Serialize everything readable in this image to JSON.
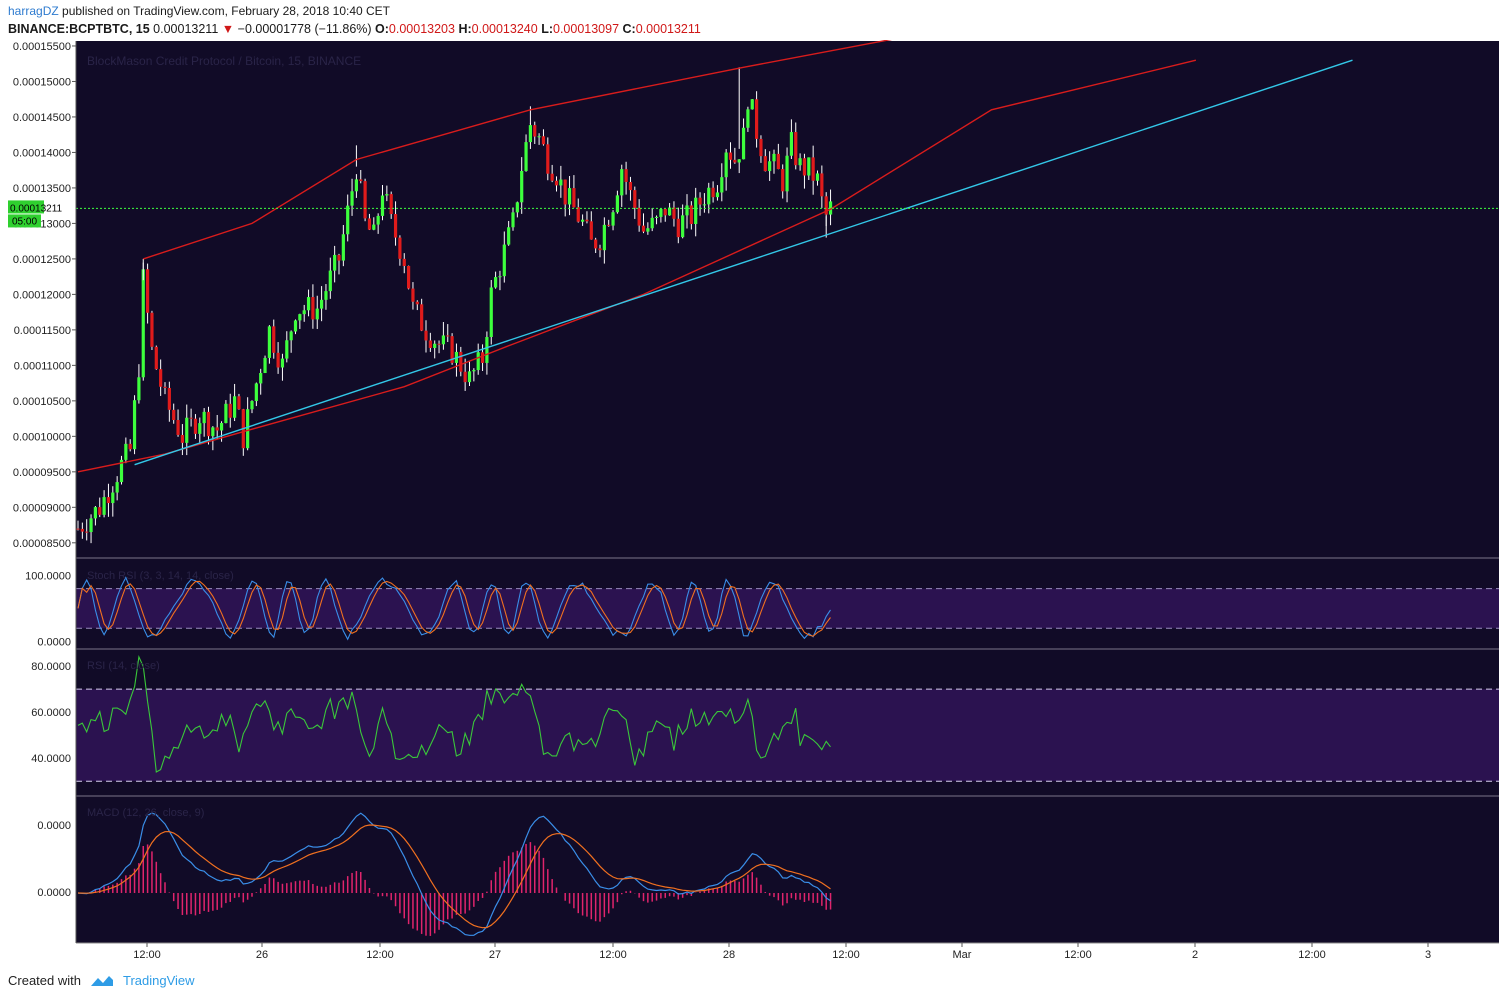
{
  "header": {
    "author": "harragDZ",
    "published": "published on TradingView.com, February 28, 2018 10:40 CET",
    "symbol": "BINANCE:BCPTBTC, 15",
    "last": "0.00013211",
    "arrow": "▼",
    "change": "−0.00001778 (−11.86%)",
    "o_label": "O:",
    "o_val": "0.00013203",
    "h_label": "H:",
    "h_val": "0.00013240",
    "l_label": "L:",
    "l_val": "0.00013097",
    "c_label": "C:",
    "c_val": "0.00013211"
  },
  "footer": {
    "created": "Created with",
    "brand": "TradingView"
  },
  "colors": {
    "pane_bg": "#110b27",
    "band_fill": "#2b1250",
    "up": "#3dff3d",
    "down": "#e01b1b",
    "channel": "#d81c1c",
    "trendline": "#33c8e8",
    "last_line": "#3dff3d",
    "stoch_k": "#3a8ee8",
    "stoch_d": "#f07020",
    "rsi": "#3ac83a",
    "macd": "#3a8ee8",
    "signal": "#f07020",
    "hist": "#e0246c"
  },
  "chart_data": {
    "type": "candlestick",
    "title": "BlockMason Credit Protocol / Bitcoin, 15, BINANCE",
    "price_axis_labels": [
      "0.00015500",
      "0.00015000",
      "0.00014500",
      "0.00014000",
      "0.00013500",
      "0.00013000",
      "0.00012500",
      "0.00012000",
      "0.00011500",
      "0.00011000",
      "0.00010500",
      "0.00010000",
      "0.00009500",
      "0.00009000",
      "0.00008500"
    ],
    "price_range": [
      8.3e-05,
      0.0001557
    ],
    "last_price_tag": "0.00013211",
    "countdown_tag": "05:00",
    "time_labels": [
      "12:00",
      "26",
      "12:00",
      "27",
      "12:00",
      "28",
      "12:00",
      "Mar",
      "12:00",
      "2",
      "12:00",
      "3"
    ],
    "price_path": [
      [
        0,
        8.7e-05
      ],
      [
        5,
        9e-05
      ],
      [
        10,
        9.6e-05
      ],
      [
        12,
        9.8e-05
      ],
      [
        14,
        0.00011
      ],
      [
        15,
        0.000122
      ],
      [
        17,
        0.000112
      ],
      [
        20,
        0.000105
      ],
      [
        24,
        0.0001
      ],
      [
        28,
        0.000103
      ],
      [
        32,
        0.000101
      ],
      [
        36,
        0.000105
      ],
      [
        38,
        0.0001
      ],
      [
        40,
        0.000105
      ],
      [
        44,
        0.000115
      ],
      [
        47,
        0.00011
      ],
      [
        50,
        0.000118
      ],
      [
        55,
        0.000118
      ],
      [
        60,
        0.000125
      ],
      [
        64,
        0.000138
      ],
      [
        66,
        0.00013
      ],
      [
        68,
        0.000128
      ],
      [
        70,
        0.000135
      ],
      [
        72,
        0.00013
      ],
      [
        75,
        0.000125
      ],
      [
        77,
        0.000118
      ],
      [
        80,
        0.000115
      ],
      [
        83,
        0.000113
      ],
      [
        86,
        0.000112
      ],
      [
        90,
        0.000108
      ],
      [
        93,
        0.000111
      ],
      [
        95,
        0.00012
      ],
      [
        98,
        0.000126
      ],
      [
        100,
        0.00013
      ],
      [
        102,
        0.000138
      ],
      [
        104,
        0.000144
      ],
      [
        106,
        0.000142
      ],
      [
        108,
        0.000139
      ],
      [
        110,
        0.000137
      ],
      [
        112,
        0.000134
      ],
      [
        114,
        0.000132
      ],
      [
        116,
        0.00013
      ],
      [
        118,
        0.000127
      ],
      [
        120,
        0.000128
      ],
      [
        123,
        0.000133
      ],
      [
        125,
        0.000138
      ],
      [
        127,
        0.000134
      ],
      [
        130,
        0.000129
      ],
      [
        133,
        0.00013
      ],
      [
        135,
        0.000132
      ],
      [
        138,
        0.00013
      ],
      [
        141,
        0.000131
      ],
      [
        144,
        0.000134
      ],
      [
        147,
        0.000136
      ],
      [
        149,
        0.000141
      ],
      [
        151,
        0.000139
      ],
      [
        153,
        0.000142
      ],
      [
        154,
        0.000148
      ],
      [
        156,
        0.000143
      ],
      [
        158,
        0.000139
      ],
      [
        160,
        0.000138
      ],
      [
        162,
        0.000136
      ],
      [
        164,
        0.000141
      ],
      [
        166,
        0.000138
      ],
      [
        168,
        0.0001375
      ],
      [
        170,
        0.000136
      ],
      [
        171,
        0.000133
      ],
      [
        172,
        0.000131
      ],
      [
        173,
        0.0001321
      ]
    ],
    "channel_upper": {
      "points": [
        [
          15,
          0.000125
        ],
        [
          40,
          0.00013
        ],
        [
          64,
          0.000139
        ],
        [
          104,
          0.000146
        ],
        [
          153,
          0.000152
        ],
        [
          192,
          0.0001565
        ]
      ]
    },
    "channel_lower": {
      "points": [
        [
          0,
          9.5e-05
        ],
        [
          20,
          9.75e-05
        ],
        [
          40,
          0.000101
        ],
        [
          75,
          0.000107
        ],
        [
          100,
          0.000113
        ],
        [
          130,
          0.00012
        ],
        [
          173,
          0.000132
        ],
        [
          210,
          0.000146
        ],
        [
          257,
          0.000153
        ]
      ]
    },
    "trendline": {
      "from": [
        13,
        9.6e-05
      ],
      "to": [
        293,
        0.000153
      ]
    },
    "indicators": [
      {
        "name": "Stoch RSI (3, 3, 14, 14, close)",
        "type": "line",
        "axis_labels": [
          "100.0000",
          "0.0000"
        ],
        "range": [
          -10,
          125
        ],
        "band": [
          20,
          80
        ]
      },
      {
        "name": "RSI (14, close)",
        "type": "line",
        "axis_labels": [
          "80.0000",
          "60.0000",
          "40.0000"
        ],
        "range": [
          24,
          87
        ],
        "band": [
          30,
          70
        ]
      },
      {
        "name": "MACD (12, 26, close, 9)",
        "type": "histogram+line",
        "axis_labels": [
          "0.0000",
          "0.0000"
        ]
      }
    ]
  }
}
